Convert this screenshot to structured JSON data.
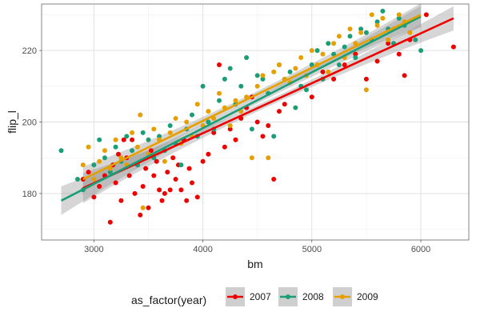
{
  "chart_data": {
    "type": "scatter",
    "title": "",
    "xlabel": "bm",
    "ylabel": "flip_l",
    "xlim": [
      2520,
      6440
    ],
    "ylim": [
      167,
      233
    ],
    "x_ticks": [
      3000,
      4000,
      5000,
      6000
    ],
    "y_ticks": [
      180,
      200,
      220
    ],
    "x_tick_labels": [
      "3000",
      "4000",
      "5000",
      "6000"
    ],
    "y_tick_labels": [
      "180",
      "200",
      "220"
    ],
    "grid": true,
    "legend": {
      "title": "as_factor(year)",
      "position": "bottom"
    },
    "series": [
      {
        "name": "2007",
        "color": "#ee0000",
        "points": [
          [
            2900,
            184
          ],
          [
            2950,
            186
          ],
          [
            3000,
            179
          ],
          [
            3050,
            182
          ],
          [
            3100,
            185
          ],
          [
            3150,
            172
          ],
          [
            3175,
            188
          ],
          [
            3200,
            183
          ],
          [
            3225,
            191
          ],
          [
            3250,
            178
          ],
          [
            3275,
            195
          ],
          [
            3300,
            190
          ],
          [
            3325,
            185
          ],
          [
            3350,
            195
          ],
          [
            3375,
            180
          ],
          [
            3400,
            188
          ],
          [
            3425,
            174
          ],
          [
            3450,
            182
          ],
          [
            3475,
            187
          ],
          [
            3500,
            176
          ],
          [
            3525,
            192
          ],
          [
            3550,
            185
          ],
          [
            3575,
            189
          ],
          [
            3600,
            181
          ],
          [
            3625,
            178
          ],
          [
            3650,
            180
          ],
          [
            3675,
            186
          ],
          [
            3700,
            181
          ],
          [
            3725,
            190
          ],
          [
            3750,
            184
          ],
          [
            3775,
            188
          ],
          [
            3800,
            181
          ],
          [
            3825,
            195
          ],
          [
            3850,
            178
          ],
          [
            3875,
            187
          ],
          [
            3900,
            183
          ],
          [
            3950,
            179
          ],
          [
            4000,
            189
          ],
          [
            4050,
            191
          ],
          [
            4100,
            197
          ],
          [
            4150,
            216
          ],
          [
            4200,
            193
          ],
          [
            4250,
            198
          ],
          [
            4300,
            195
          ],
          [
            4350,
            201
          ],
          [
            4400,
            204
          ],
          [
            4450,
            207
          ],
          [
            4500,
            200
          ],
          [
            4550,
            196
          ],
          [
            4600,
            199
          ],
          [
            4650,
            184
          ],
          [
            4700,
            203
          ],
          [
            4750,
            205
          ],
          [
            5000,
            207
          ],
          [
            5100,
            214
          ],
          [
            5200,
            212
          ],
          [
            5300,
            216
          ],
          [
            5400,
            219
          ],
          [
            5500,
            212
          ],
          [
            5600,
            217
          ],
          [
            5700,
            222
          ],
          [
            5800,
            219
          ],
          [
            5850,
            213
          ],
          [
            5900,
            223
          ],
          [
            6050,
            230
          ],
          [
            6300,
            221
          ]
        ],
        "fit": {
          "x1": 2900,
          "y1": 181.5,
          "x2": 6300,
          "y2": 229,
          "se_start": 4.2,
          "se_end": 3.4
        }
      },
      {
        "name": "2008",
        "color": "#1b9e77",
        "points": [
          [
            2700,
            192
          ],
          [
            2850,
            184
          ],
          [
            2900,
            181
          ],
          [
            3000,
            188
          ],
          [
            3050,
            195
          ],
          [
            3100,
            190
          ],
          [
            3150,
            186
          ],
          [
            3200,
            193
          ],
          [
            3250,
            189
          ],
          [
            3300,
            196
          ],
          [
            3350,
            192
          ],
          [
            3400,
            188
          ],
          [
            3450,
            197
          ],
          [
            3500,
            195
          ],
          [
            3550,
            190
          ],
          [
            3600,
            196
          ],
          [
            3650,
            192
          ],
          [
            3700,
            199
          ],
          [
            3750,
            194
          ],
          [
            3800,
            188
          ],
          [
            3850,
            198
          ],
          [
            3900,
            202
          ],
          [
            3950,
            196
          ],
          [
            4000,
            210
          ],
          [
            4050,
            200
          ],
          [
            4100,
            198
          ],
          [
            4150,
            206
          ],
          [
            4200,
            212
          ],
          [
            4250,
            215
          ],
          [
            4300,
            205
          ],
          [
            4350,
            210
          ],
          [
            4400,
            218
          ],
          [
            4450,
            198
          ],
          [
            4500,
            213
          ],
          [
            4550,
            212
          ],
          [
            4600,
            208
          ],
          [
            4650,
            196
          ],
          [
            4700,
            216
          ],
          [
            4750,
            212
          ],
          [
            4800,
            214
          ],
          [
            4850,
            204
          ],
          [
            4900,
            210
          ],
          [
            4950,
            209
          ],
          [
            5000,
            216
          ],
          [
            5050,
            220
          ],
          [
            5100,
            212
          ],
          [
            5150,
            222
          ],
          [
            5200,
            219
          ],
          [
            5250,
            216
          ],
          [
            5300,
            221
          ],
          [
            5350,
            224
          ],
          [
            5400,
            218
          ],
          [
            5450,
            226
          ],
          [
            5500,
            225
          ],
          [
            5550,
            223
          ],
          [
            5600,
            228
          ],
          [
            5650,
            231
          ],
          [
            5700,
            226
          ],
          [
            5750,
            222
          ],
          [
            5800,
            229
          ],
          [
            5850,
            227
          ],
          [
            5950,
            223
          ],
          [
            6000,
            220
          ]
        ],
        "fit": {
          "x1": 2700,
          "y1": 178,
          "x2": 6000,
          "y2": 229.5,
          "se_start": 4.0,
          "se_end": 3.0
        }
      },
      {
        "name": "2009",
        "color": "#e69f00",
        "points": [
          [
            2900,
            188
          ],
          [
            2950,
            193
          ],
          [
            3000,
            184
          ],
          [
            3050,
            189
          ],
          [
            3100,
            192
          ],
          [
            3150,
            187
          ],
          [
            3200,
            195
          ],
          [
            3250,
            190
          ],
          [
            3300,
            188
          ],
          [
            3350,
            197
          ],
          [
            3400,
            193
          ],
          [
            3425,
            202
          ],
          [
            3450,
            176
          ],
          [
            3500,
            191
          ],
          [
            3550,
            198
          ],
          [
            3600,
            195
          ],
          [
            3650,
            189
          ],
          [
            3700,
            197
          ],
          [
            3750,
            201
          ],
          [
            3800,
            194
          ],
          [
            3850,
            200
          ],
          [
            3900,
            196
          ],
          [
            3950,
            205
          ],
          [
            4000,
            199
          ],
          [
            4050,
            203
          ],
          [
            4100,
            201
          ],
          [
            4150,
            208
          ],
          [
            4200,
            204
          ],
          [
            4250,
            199
          ],
          [
            4300,
            206
          ],
          [
            4350,
            203
          ],
          [
            4400,
            207
          ],
          [
            4450,
            190
          ],
          [
            4500,
            210
          ],
          [
            4550,
            213
          ],
          [
            4600,
            190
          ],
          [
            4650,
            214
          ],
          [
            4700,
            216
          ],
          [
            4750,
            212
          ],
          [
            4800,
            211
          ],
          [
            4850,
            215
          ],
          [
            4900,
            218
          ],
          [
            4950,
            213
          ],
          [
            5000,
            220
          ],
          [
            5050,
            216
          ],
          [
            5100,
            219
          ],
          [
            5150,
            214
          ],
          [
            5200,
            222
          ],
          [
            5250,
            224
          ],
          [
            5300,
            218
          ],
          [
            5350,
            226
          ],
          [
            5400,
            222
          ],
          [
            5450,
            225
          ],
          [
            5500,
            209
          ],
          [
            5550,
            230
          ],
          [
            5600,
            227
          ],
          [
            5650,
            229
          ],
          [
            5700,
            223
          ],
          [
            5750,
            226
          ],
          [
            5800,
            230
          ],
          [
            5850,
            228
          ],
          [
            5900,
            225
          ]
        ],
        "fit": {
          "x1": 2900,
          "y1": 184,
          "x2": 6000,
          "y2": 230,
          "se_start": 3.5,
          "se_end": 3.2
        }
      }
    ]
  }
}
